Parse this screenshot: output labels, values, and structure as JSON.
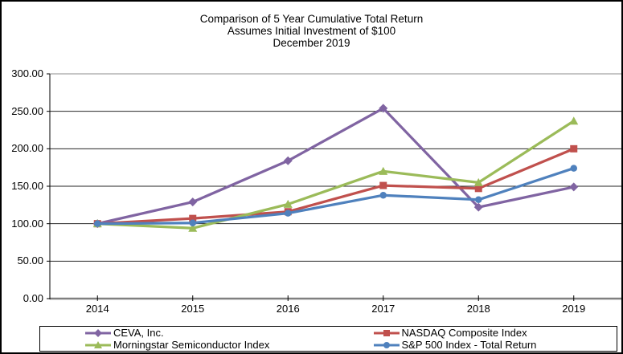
{
  "title": {
    "line1": "Comparison of 5 Year Cumulative Total Return",
    "line2": "Assumes Initial Investment of $100",
    "line3": "December 2019"
  },
  "chart_data": {
    "type": "line",
    "title": "Comparison of 5 Year Cumulative Total Return — Assumes Initial Investment of $100 — December 2019",
    "categories": [
      "2014",
      "2015",
      "2016",
      "2017",
      "2018",
      "2019"
    ],
    "series": [
      {
        "name": "CEVA, Inc.",
        "color": "#8064A2",
        "marker": "diamond",
        "values": [
          100,
          129,
          184,
          254,
          122,
          149
        ]
      },
      {
        "name": "NASDAQ Composite Index",
        "color": "#C0504D",
        "marker": "square",
        "values": [
          100,
          107,
          116,
          151,
          147,
          200
        ]
      },
      {
        "name": "Morningstar Semiconductor Index",
        "color": "#9BBB59",
        "marker": "triangle",
        "values": [
          100,
          94,
          126,
          170,
          155,
          237
        ]
      },
      {
        "name": "S&P 500 Index - Total Return",
        "color": "#4F81BD",
        "marker": "circle",
        "values": [
          100,
          101,
          114,
          138,
          132,
          174
        ]
      }
    ],
    "xlabel": "",
    "ylabel": "",
    "ylim": [
      0,
      300
    ],
    "y_tick_step": 50,
    "y_tick_labels": [
      "0.00",
      "50.00",
      "100.00",
      "150.00",
      "200.00",
      "250.00",
      "300.00"
    ],
    "grid": true,
    "legend_position": "bottom"
  },
  "axis_colors": {
    "gridline": "#262626",
    "top_gridline": "#8c8c8c",
    "zero_axis": "#808080",
    "y_axis": "#000000",
    "tick": "#000000"
  }
}
